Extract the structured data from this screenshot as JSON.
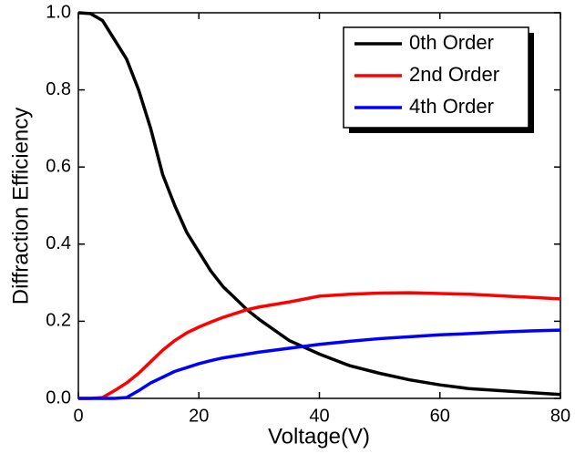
{
  "chart_data": {
    "type": "line",
    "x_label": "Voltage(V)",
    "y_label": "Diffraction Efficiency",
    "x": [
      0,
      2,
      4,
      6,
      8,
      10,
      12,
      14,
      16,
      18,
      20,
      22,
      24,
      26,
      28,
      30,
      35,
      40,
      45,
      50,
      55,
      60,
      65,
      70,
      75,
      80
    ],
    "series": [
      {
        "name": "0th Order",
        "color": "#000000",
        "values": [
          1.0,
          0.998,
          0.98,
          0.93,
          0.88,
          0.8,
          0.7,
          0.58,
          0.5,
          0.43,
          0.38,
          0.33,
          0.29,
          0.26,
          0.23,
          0.205,
          0.15,
          0.115,
          0.085,
          0.065,
          0.048,
          0.035,
          0.025,
          0.02,
          0.015,
          0.01
        ]
      },
      {
        "name": "2nd Order",
        "color": "#ff0000",
        "values": [
          0,
          0,
          0.002,
          0.02,
          0.04,
          0.065,
          0.095,
          0.125,
          0.15,
          0.17,
          0.185,
          0.198,
          0.21,
          0.22,
          0.23,
          0.237,
          0.25,
          0.265,
          0.27,
          0.273,
          0.274,
          0.272,
          0.27,
          0.266,
          0.262,
          0.258
        ]
      },
      {
        "name": "4th Order",
        "color": "#0000ff",
        "values": [
          0,
          0,
          0,
          0,
          0.002,
          0.02,
          0.04,
          0.055,
          0.07,
          0.08,
          0.09,
          0.098,
          0.105,
          0.11,
          0.115,
          0.12,
          0.13,
          0.14,
          0.148,
          0.155,
          0.16,
          0.165,
          0.168,
          0.172,
          0.175,
          0.177
        ]
      }
    ],
    "xlim": [
      0,
      80
    ],
    "xticks": [
      0,
      20,
      40,
      60,
      80
    ],
    "ylim": [
      0,
      1
    ],
    "yticks": [
      {
        "value": 0,
        "label": "0.0"
      },
      0.2,
      0.4,
      0.6,
      0.8,
      {
        "value": 1,
        "label": "1.0"
      }
    ],
    "legend": "upper right"
  }
}
